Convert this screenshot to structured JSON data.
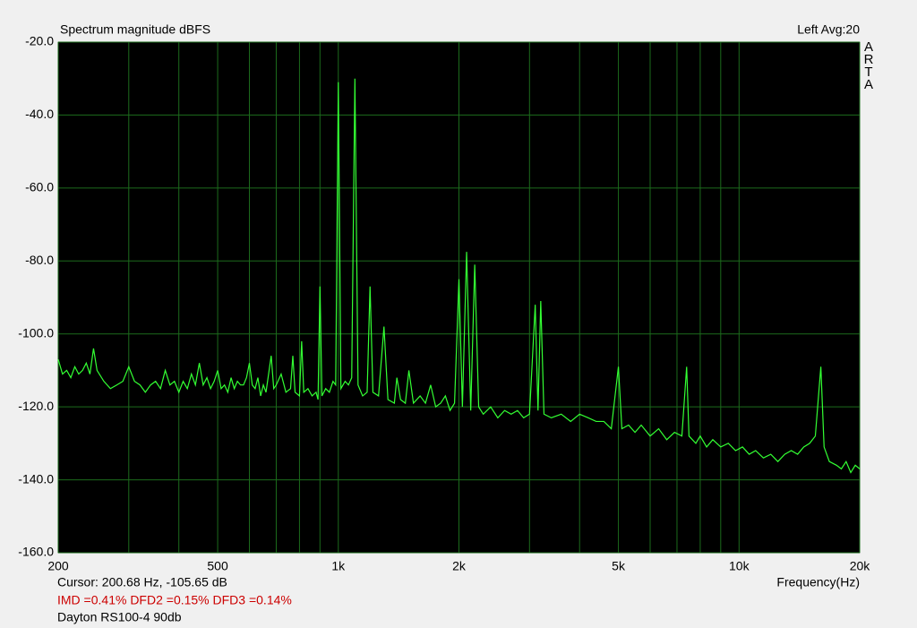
{
  "chart_data": {
    "type": "line",
    "title": "Spectrum magnitude dBFS",
    "channel_info": "Left  Avg:20",
    "logo": "ARTA",
    "x_label": "Frequency(Hz)",
    "xlog": true,
    "grid": true,
    "grid_color": "#1c6b1c",
    "background": "#000000",
    "xlim": [
      200,
      20000
    ],
    "ylim": [
      -160,
      -20
    ],
    "xticks": [
      200,
      500,
      {
        "value": 1000,
        "label": "1k"
      },
      {
        "value": 2000,
        "label": "2k"
      },
      {
        "value": 5000,
        "label": "5k"
      },
      {
        "value": 10000,
        "label": "10k"
      },
      {
        "value": 20000,
        "label": "20k"
      }
    ],
    "x_minor_ticks": [
      300,
      400,
      600,
      700,
      800,
      900,
      3000,
      4000,
      6000,
      7000,
      8000,
      9000
    ],
    "yticks": [
      {
        "value": -20,
        "label": "-20.0"
      },
      {
        "value": -40,
        "label": "-40.0"
      },
      {
        "value": -60,
        "label": "-60.0"
      },
      {
        "value": -80,
        "label": "-80.0"
      },
      {
        "value": -100,
        "label": "-100.0"
      },
      {
        "value": -120,
        "label": "-120.0"
      },
      {
        "value": -140,
        "label": "-140.0"
      },
      {
        "value": -160,
        "label": "-160.0"
      }
    ],
    "x": [
      200,
      205,
      210,
      215,
      220,
      225,
      230,
      235,
      240,
      245,
      250,
      260,
      270,
      280,
      290,
      300,
      310,
      320,
      330,
      340,
      350,
      360,
      370,
      380,
      390,
      400,
      410,
      420,
      430,
      440,
      450,
      460,
      470,
      480,
      490,
      500,
      510,
      520,
      530,
      540,
      550,
      560,
      570,
      580,
      590,
      600,
      610,
      620,
      630,
      640,
      650,
      660,
      680,
      690,
      700,
      720,
      740,
      760,
      770,
      780,
      800,
      810,
      820,
      840,
      860,
      880,
      890,
      900,
      910,
      930,
      950,
      970,
      985,
      1000,
      1015,
      1040,
      1060,
      1080,
      1100,
      1120,
      1150,
      1180,
      1200,
      1220,
      1260,
      1300,
      1330,
      1380,
      1400,
      1430,
      1470,
      1500,
      1540,
      1600,
      1650,
      1700,
      1750,
      1800,
      1850,
      1900,
      1950,
      2000,
      2040,
      2090,
      2140,
      2190,
      2240,
      2300,
      2400,
      2500,
      2600,
      2700,
      2800,
      2900,
      3000,
      3100,
      3150,
      3200,
      3260,
      3400,
      3600,
      3800,
      4000,
      4200,
      4400,
      4600,
      4800,
      5000,
      5100,
      5300,
      5500,
      5700,
      6000,
      6300,
      6600,
      6900,
      7200,
      7400,
      7500,
      7800,
      8000,
      8300,
      8600,
      9000,
      9400,
      9800,
      10200,
      10600,
      11000,
      11500,
      12000,
      12500,
      13000,
      13500,
      14000,
      14500,
      15000,
      15500,
      16000,
      16300,
      16800,
      17500,
      18000,
      18500,
      19000,
      19500,
      20000
    ],
    "series": [
      {
        "color": "#33ff33",
        "values": [
          -107,
          -111,
          -110,
          -112,
          -109,
          -111,
          -110,
          -108,
          -111,
          -104,
          -110,
          -113,
          -115,
          -114,
          -113,
          -109,
          -113,
          -114,
          -116,
          -114,
          -113,
          -115,
          -110,
          -114,
          -113,
          -116,
          -113,
          -115,
          -111,
          -114,
          -108,
          -114,
          -112,
          -115,
          -113,
          -110,
          -115,
          -114,
          -116,
          -112,
          -115,
          -113,
          -114,
          -114,
          -112,
          -108,
          -114,
          -115,
          -112,
          -117,
          -114,
          -116,
          -106,
          -115,
          -114,
          -111,
          -116,
          -115,
          -106,
          -116,
          -117,
          -102,
          -116,
          -115,
          -117,
          -116,
          -118,
          -87,
          -117,
          -115,
          -116,
          -113,
          -114,
          -31,
          -115,
          -113,
          -114,
          -112,
          -30,
          -114,
          -117,
          -116,
          -87,
          -116,
          -117,
          -98,
          -118,
          -119,
          -112,
          -118,
          -119,
          -110,
          -119,
          -117,
          -119,
          -114,
          -120,
          -119,
          -117,
          -121,
          -119,
          -85,
          -120,
          -77.5,
          -121,
          -81,
          -120,
          -122,
          -120,
          -123,
          -121,
          -122,
          -121,
          -123,
          -122,
          -92,
          -121,
          -91,
          -122,
          -123,
          -122,
          -124,
          -122,
          -123,
          -124,
          -124,
          -126,
          -109,
          -126,
          -125,
          -127,
          -125,
          -128,
          -126,
          -129,
          -127,
          -128,
          -109,
          -128,
          -130,
          -128,
          -131,
          -129,
          -131,
          -130,
          -132,
          -131,
          -133,
          -132,
          -134,
          -133,
          -135,
          -133,
          -132,
          -133,
          -131,
          -130,
          -128,
          -109,
          -131,
          -135,
          -136,
          -137,
          -135,
          -138,
          -136,
          -137
        ]
      }
    ],
    "cursor": "Cursor: 200.68 Hz, -105.65 dB",
    "distortion": "IMD =0.41%  DFD2 =0.15%  DFD3 =0.14%",
    "distortion_color": "#cc0000",
    "note": "Dayton RS100-4 90db"
  }
}
